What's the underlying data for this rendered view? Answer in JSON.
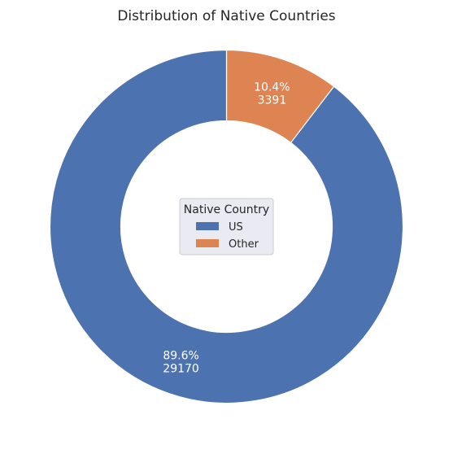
{
  "chart_data": {
    "type": "pie",
    "variant": "donut",
    "title": "Distribution of Native Countries",
    "legend_title": "Native Country",
    "legend_position": "center",
    "slices": [
      {
        "label": "US",
        "value": 29170,
        "percent_label": "89.6%",
        "color": "#4c72b0"
      },
      {
        "label": "Other",
        "value": 3391,
        "percent_label": "10.4%",
        "color": "#dd8452"
      }
    ],
    "start_angle_degrees_clockwise_from_top": 0,
    "direction": "clockwise"
  }
}
